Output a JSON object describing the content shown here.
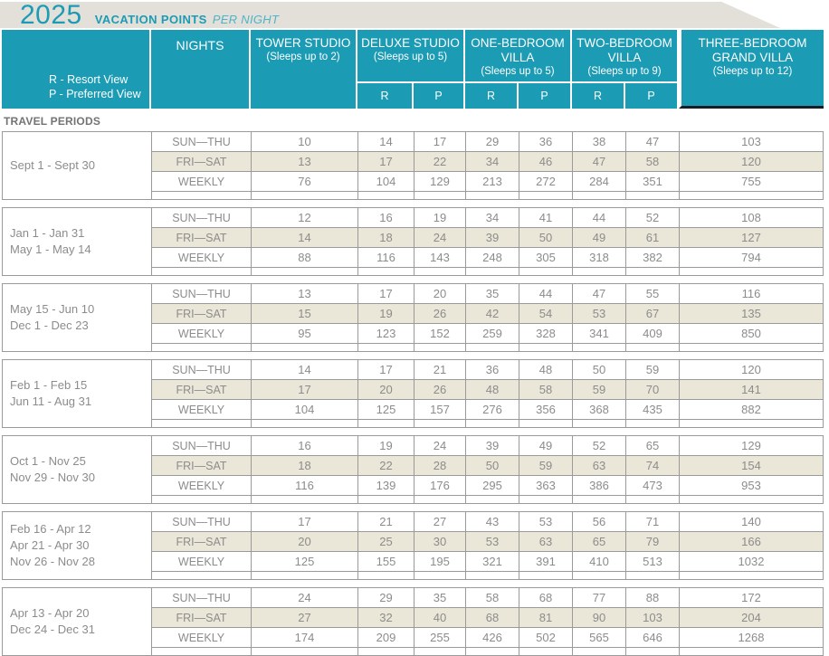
{
  "banner": {
    "year": "2025",
    "title": "VACATION POINTS",
    "subtitle": "PER NIGHT"
  },
  "legend": {
    "resort": "R - Resort View",
    "preferred": "P - Preferred View"
  },
  "columns": {
    "nights": "NIGHTS",
    "view_labels": {
      "r": "R",
      "p": "P"
    },
    "room_types": [
      {
        "name": "TOWER STUDIO",
        "sleeps": "(Sleeps up to 2)"
      },
      {
        "name": "DELUXE STUDIO",
        "sleeps": "(Sleeps up to 5)"
      },
      {
        "name": "ONE-BEDROOM VILLA",
        "sleeps": "(Sleeps up to 5)"
      },
      {
        "name": "TWO-BEDROOM VILLA",
        "sleeps": "(Sleeps up to 9)"
      },
      {
        "name": "THREE-BEDROOM GRAND VILLA",
        "sleeps": "(Sleeps up to 12)"
      }
    ]
  },
  "section_label": "TRAVEL PERIODS",
  "night_labels": [
    "SUN—THU",
    "FRI—SAT",
    "WEEKLY"
  ],
  "travel_periods": [
    {
      "dates": [
        "Sept 1 - Sept 30"
      ],
      "rows": [
        [
          10,
          14,
          17,
          29,
          36,
          38,
          47,
          103
        ],
        [
          13,
          17,
          22,
          34,
          46,
          47,
          58,
          120
        ],
        [
          76,
          104,
          129,
          213,
          272,
          284,
          351,
          755
        ]
      ]
    },
    {
      "dates": [
        "Jan 1 - Jan 31",
        "May 1 - May 14"
      ],
      "rows": [
        [
          12,
          16,
          19,
          34,
          41,
          44,
          52,
          108
        ],
        [
          14,
          18,
          24,
          39,
          50,
          49,
          61,
          127
        ],
        [
          88,
          116,
          143,
          248,
          305,
          318,
          382,
          794
        ]
      ]
    },
    {
      "dates": [
        "May 15 - Jun 10",
        "Dec 1 - Dec 23"
      ],
      "rows": [
        [
          13,
          17,
          20,
          35,
          44,
          47,
          55,
          116
        ],
        [
          15,
          19,
          26,
          42,
          54,
          53,
          67,
          135
        ],
        [
          95,
          123,
          152,
          259,
          328,
          341,
          409,
          850
        ]
      ]
    },
    {
      "dates": [
        "Feb 1 - Feb 15",
        "Jun 11 - Aug 31"
      ],
      "rows": [
        [
          14,
          17,
          21,
          36,
          48,
          50,
          59,
          120
        ],
        [
          17,
          20,
          26,
          48,
          58,
          59,
          70,
          141
        ],
        [
          104,
          125,
          157,
          276,
          356,
          368,
          435,
          882
        ]
      ]
    },
    {
      "dates": [
        "Oct 1 - Nov 25",
        "Nov 29 - Nov 30"
      ],
      "rows": [
        [
          16,
          19,
          24,
          39,
          49,
          52,
          65,
          129
        ],
        [
          18,
          22,
          28,
          50,
          59,
          63,
          74,
          154
        ],
        [
          116,
          139,
          176,
          295,
          363,
          386,
          473,
          953
        ]
      ]
    },
    {
      "dates": [
        "Feb 16 - Apr 12",
        "Apr 21 - Apr 30",
        "Nov 26 - Nov 28"
      ],
      "rows": [
        [
          17,
          21,
          27,
          43,
          53,
          56,
          71,
          140
        ],
        [
          20,
          25,
          30,
          53,
          63,
          65,
          79,
          166
        ],
        [
          125,
          155,
          195,
          321,
          391,
          410,
          513,
          1032
        ]
      ]
    },
    {
      "dates": [
        "Apr 13 - Apr 20",
        "Dec 24 - Dec 31"
      ],
      "rows": [
        [
          24,
          29,
          35,
          58,
          68,
          77,
          88,
          172
        ],
        [
          27,
          32,
          40,
          68,
          81,
          90,
          103,
          204
        ],
        [
          174,
          209,
          255,
          426,
          502,
          565,
          646,
          1268
        ]
      ]
    }
  ],
  "colors": {
    "teal": "#1b9bb4",
    "banner_bg": "#e2e0d8",
    "stripe_beige": "#eae7d8",
    "text_gray": "#8c8c8c",
    "border_gray": "#9a9a9a",
    "dark_accent": "#1b1b24"
  }
}
